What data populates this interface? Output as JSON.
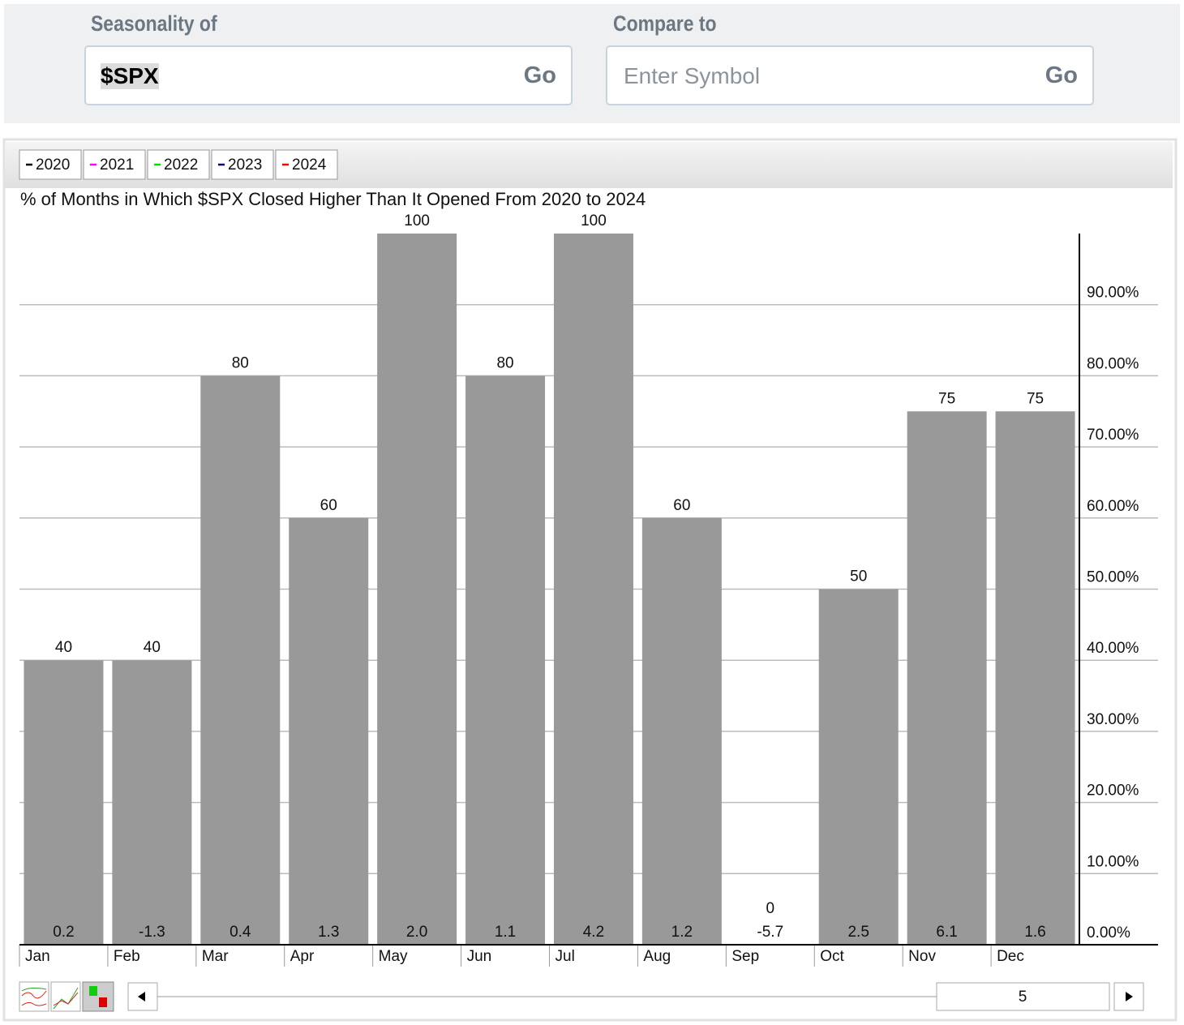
{
  "form": {
    "seasonality_label": "Seasonality of",
    "symbol": "$SPX",
    "go": "Go",
    "compare_label": "Compare to",
    "compare_placeholder": "Enter Symbol",
    "compare_go": "Go"
  },
  "chart_data": {
    "type": "bar",
    "title": "% of Months in Which $SPX Closed Higher Than It Opened From 2020 to 2024",
    "legend": [
      {
        "label": "2020",
        "color": "#000000"
      },
      {
        "label": "2021",
        "color": "#ff00ff"
      },
      {
        "label": "2022",
        "color": "#00dd00"
      },
      {
        "label": "2023",
        "color": "#000080"
      },
      {
        "label": "2024",
        "color": "#ff0000"
      }
    ],
    "categories": [
      "Jan",
      "Feb",
      "Mar",
      "Apr",
      "May",
      "Jun",
      "Jul",
      "Aug",
      "Sep",
      "Oct",
      "Nov",
      "Dec"
    ],
    "values": [
      40,
      40,
      80,
      60,
      100,
      80,
      100,
      60,
      0,
      50,
      75,
      75
    ],
    "color": "#999999",
    "avg_change": {
      "values": [
        0.2,
        -1.3,
        0.4,
        1.3,
        2.0,
        1.1,
        4.2,
        1.2,
        -5.7,
        2.5,
        6.1,
        1.6
      ],
      "value_labels": [
        "0.2",
        "-1.3",
        "0.4",
        "1.3",
        "2.0",
        "1.1",
        "4.2",
        "1.2",
        "-5.7",
        "2.5",
        "6.1",
        "1.6"
      ]
    },
    "ylim": [
      0,
      100
    ],
    "yticks": [
      {
        "value": 0,
        "label": "0.00%"
      },
      {
        "value": 10,
        "label": "10.00%"
      },
      {
        "value": 20,
        "label": "20.00%"
      },
      {
        "value": 30,
        "label": "30.00%"
      },
      {
        "value": 40,
        "label": "40.00%"
      },
      {
        "value": 50,
        "label": "50.00%"
      },
      {
        "value": 60,
        "label": "60.00%"
      },
      {
        "value": 70,
        "label": "70.00%"
      },
      {
        "value": 80,
        "label": "80.00%"
      },
      {
        "value": 90,
        "label": "90.00%"
      }
    ],
    "grid": true
  },
  "slider": {
    "value": 5
  }
}
